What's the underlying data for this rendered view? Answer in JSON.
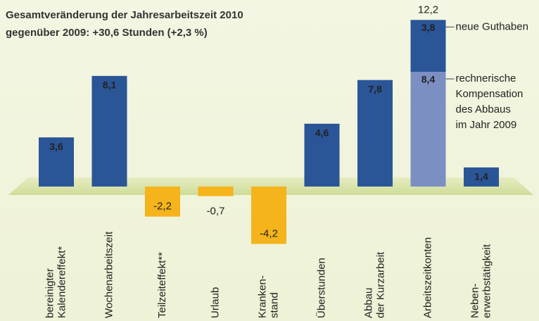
{
  "chart_data": {
    "type": "bar",
    "title": [
      "Gesamtveränderung der Jahresarbeitszeit 2010",
      "gegenüber 2009: +30,6 Stunden (+2,3 %)"
    ],
    "categories": [
      [
        "bereinigter",
        "Kalendereffekt*"
      ],
      [
        "Wochenarbeitszeit"
      ],
      [
        "Teilzeiteffekt**"
      ],
      [
        "Urlaub"
      ],
      [
        "Kranken-",
        "stand"
      ],
      [
        "Überstunden"
      ],
      [
        "Abbau",
        "der Kurzarbeit"
      ],
      [
        "Arbeitszeitkonten"
      ],
      [
        "Neben-",
        "erwerbstätigkeit"
      ]
    ],
    "values": [
      3.6,
      8.1,
      -2.2,
      -0.7,
      -4.2,
      4.6,
      7.8,
      null,
      1.4
    ],
    "value_labels": [
      "3,6",
      "8,1",
      "-2,2",
      "-0,7",
      "-4,2",
      "4,6",
      "7,8",
      null,
      "1,4"
    ],
    "positive_color": "#2a5597",
    "negative_color": "#f5b31c",
    "stack": {
      "total": 12.2,
      "total_label": "12,2",
      "segments": [
        {
          "name": [
            "rechnerische",
            "Kompensation",
            "des Abbaus",
            "im Jahr 2009"
          ],
          "value": 8.4,
          "value_label": "8,4",
          "color": "#7b8fc2"
        },
        {
          "name": [
            "neue Guthaben"
          ],
          "value": 3.8,
          "value_label": "3,8",
          "color": "#2a5597"
        }
      ]
    }
  }
}
